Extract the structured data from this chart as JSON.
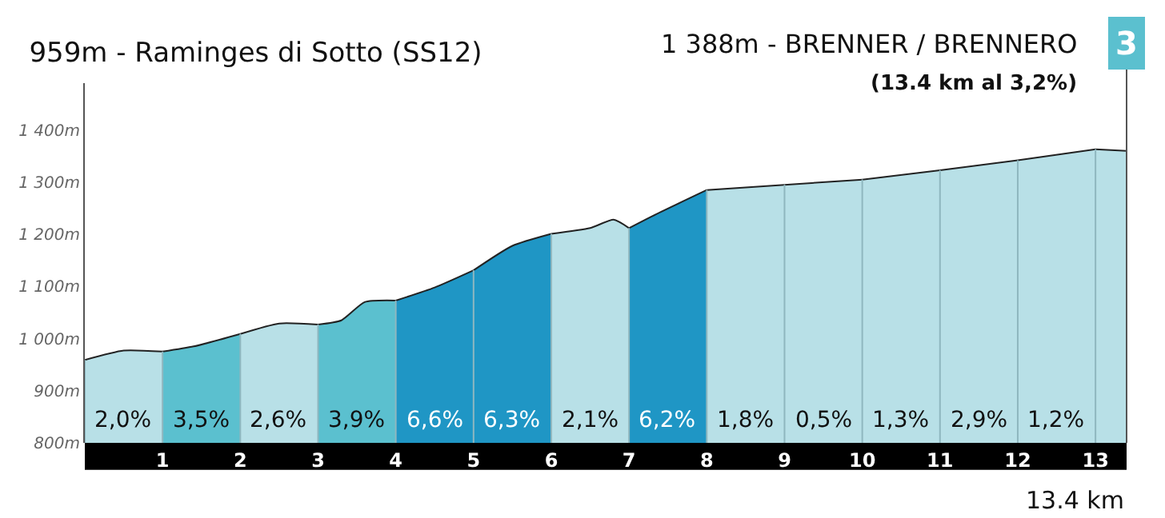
{
  "chart_data": {
    "type": "area",
    "title": "959m - Raminges di Sotto (SS12)",
    "xlabel": "13.4 km",
    "annotations": [
      "1 388m - BRENNER / BRENNERO",
      "(13.4 km al 3,2%)",
      "3"
    ],
    "xlim": [
      0,
      13.4
    ],
    "xticks": [
      1,
      2,
      3,
      4,
      5,
      6,
      7,
      8,
      9,
      10,
      11,
      12,
      13
    ],
    "ylim": [
      800,
      1490
    ],
    "yticks": [
      {
        "value": 800,
        "label": "800m"
      },
      {
        "value": 900,
        "label": "900m"
      },
      {
        "value": 1000,
        "label": "1 000m"
      },
      {
        "value": 1100,
        "label": "1 100m"
      },
      {
        "value": 1200,
        "label": "1 200m"
      },
      {
        "value": 1300,
        "label": "1 300m"
      },
      {
        "value": 1400,
        "label": "1 400m"
      }
    ],
    "grid": "x",
    "legend": false,
    "series": [
      {
        "name": "2,0%",
        "color": "#b8e0e7",
        "x": [
          0,
          0.5,
          1
        ],
        "values": [
          959,
          977,
          975
        ]
      },
      {
        "name": "3,5%",
        "color": "#5bc0cf",
        "x": [
          1,
          1.4,
          2
        ],
        "values": [
          975,
          985,
          1009
        ]
      },
      {
        "name": "2,6%",
        "color": "#b8e0e7",
        "x": [
          2,
          2.5,
          3
        ],
        "values": [
          1009,
          1029,
          1027
        ]
      },
      {
        "name": "3,9%",
        "color": "#5bc0cf",
        "x": [
          3,
          3.3,
          3.6,
          4
        ],
        "values": [
          1027,
          1035,
          1070,
          1073
        ]
      },
      {
        "name": "6,6%",
        "color": "#1f96c5",
        "x": [
          4,
          4.5,
          5
        ],
        "values": [
          1073,
          1098,
          1131
        ]
      },
      {
        "name": "6,3%",
        "color": "#1f96c5",
        "x": [
          5,
          5.5,
          6
        ],
        "values": [
          1131,
          1178,
          1201
        ]
      },
      {
        "name": "2,1%",
        "color": "#b8e0e7",
        "x": [
          6,
          6.5,
          6.8,
          7
        ],
        "values": [
          1201,
          1212,
          1228,
          1212
        ]
      },
      {
        "name": "6,2%",
        "color": "#1f96c5",
        "x": [
          7,
          7.3,
          8
        ],
        "values": [
          1212,
          1235,
          1285
        ]
      },
      {
        "name": "1,8%",
        "color": "#b8e0e7",
        "x": [
          8,
          9
        ],
        "values": [
          1285,
          1295
        ]
      },
      {
        "name": "0,5%",
        "color": "#b8e0e7",
        "x": [
          9,
          10
        ],
        "values": [
          1295,
          1305
        ]
      },
      {
        "name": "1,3%",
        "color": "#b8e0e7",
        "x": [
          10,
          11
        ],
        "values": [
          1305,
          1323
        ]
      },
      {
        "name": "2,9%",
        "color": "#b8e0e7",
        "x": [
          11,
          12
        ],
        "values": [
          1323,
          1342
        ]
      },
      {
        "name": "1,2%",
        "color": "#b8e0e7",
        "x": [
          12,
          13
        ],
        "values": [
          1342,
          1363
        ]
      },
      {
        "color": "#b8e0e7",
        "x": [
          13,
          13.4
        ],
        "values": [
          1363,
          1360
        ]
      }
    ]
  }
}
